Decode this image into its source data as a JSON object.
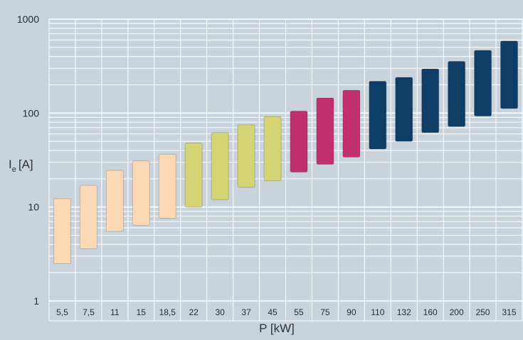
{
  "chart_data": {
    "type": "range-bar",
    "title": "",
    "xlabel": "P [kW]",
    "ylabel": {
      "symbol": "I",
      "subscript": "e",
      "unit": "[A]"
    },
    "y_scale": "log",
    "ylim": [
      1,
      1000
    ],
    "y_ticks": [
      {
        "value": 1,
        "label": "1"
      },
      {
        "value": 10,
        "label": "10"
      },
      {
        "value": 100,
        "label": "100"
      },
      {
        "value": 1000,
        "label": "1000"
      }
    ],
    "grid": true,
    "categories": [
      "5,5",
      "7,5",
      "11",
      "15",
      "18,5",
      "22",
      "30",
      "37",
      "45",
      "55",
      "75",
      "90",
      "110",
      "132",
      "160",
      "200",
      "250",
      "315"
    ],
    "ranges": [
      {
        "low": 2.5,
        "high": 12.3,
        "color": "#fcd9b5"
      },
      {
        "low": 3.6,
        "high": 17.0,
        "color": "#fcd9b5"
      },
      {
        "low": 5.5,
        "high": 24.5,
        "color": "#fcd9b5"
      },
      {
        "low": 6.4,
        "high": 31.0,
        "color": "#fcd9b5"
      },
      {
        "low": 7.6,
        "high": 36.5,
        "color": "#fcd9b5"
      },
      {
        "low": 10.0,
        "high": 48.0,
        "color": "#d4d474"
      },
      {
        "low": 12.0,
        "high": 62.0,
        "color": "#d4d474"
      },
      {
        "low": 16.2,
        "high": 75.0,
        "color": "#d4d474"
      },
      {
        "low": 19.0,
        "high": 92.0,
        "color": "#d4d474"
      },
      {
        "low": 23.5,
        "high": 105.0,
        "color": "#c0306a"
      },
      {
        "low": 28.5,
        "high": 145.0,
        "color": "#c0306a"
      },
      {
        "low": 34.0,
        "high": 175.0,
        "color": "#c0306a"
      },
      {
        "low": 41.5,
        "high": 218.0,
        "color": "#0e3d66"
      },
      {
        "low": 50.0,
        "high": 240.0,
        "color": "#0e3d66"
      },
      {
        "low": 62.0,
        "high": 295.0,
        "color": "#0e3d66"
      },
      {
        "low": 72.0,
        "high": 355.0,
        "color": "#0e3d66"
      },
      {
        "low": 93.0,
        "high": 465.0,
        "color": "#0e3d66"
      },
      {
        "low": 112.0,
        "high": 585.0,
        "color": "#0e3d66"
      }
    ],
    "colors": {
      "background": "#c9d3dc",
      "gridline": "#ffffff",
      "text": "#2b2b2b"
    }
  }
}
